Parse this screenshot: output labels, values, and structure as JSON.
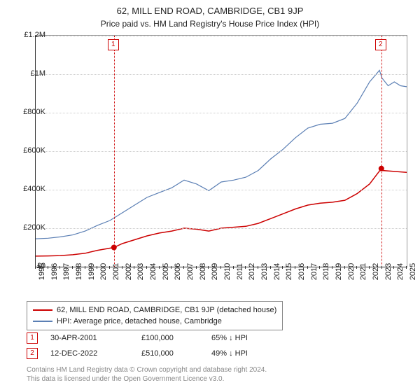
{
  "title": "62, MILL END ROAD, CAMBRIDGE, CB1 9JP",
  "subtitle": "Price paid vs. HM Land Registry's House Price Index (HPI)",
  "chart": {
    "type": "line",
    "background_color": "#ffffff",
    "grid_color": "#cccccc",
    "axis_color": "#333333",
    "ylabel_prefix": "£",
    "ylim": [
      0,
      1200000
    ],
    "ytick_step": 200000,
    "ytick_labels": [
      "£0",
      "£200K",
      "£400K",
      "£600K",
      "£800K",
      "£1M",
      "£1.2M"
    ],
    "xyears": [
      1995,
      1996,
      1997,
      1998,
      1999,
      2000,
      2001,
      2002,
      2003,
      2004,
      2005,
      2006,
      2007,
      2008,
      2009,
      2010,
      2011,
      2012,
      2013,
      2014,
      2015,
      2016,
      2017,
      2018,
      2019,
      2020,
      2021,
      2022,
      2023,
      2024,
      2025
    ],
    "title_fontsize": 13,
    "subtitle_fontsize": 12,
    "tick_fontsize": 11,
    "series": [
      {
        "name": "property",
        "label": "62, MILL END ROAD, CAMBRIDGE, CB1 9JP (detached house)",
        "color": "#cc0000",
        "line_width": 1.5,
        "data": [
          [
            1995,
            55000
          ],
          [
            1996,
            56000
          ],
          [
            1997,
            58000
          ],
          [
            1998,
            62000
          ],
          [
            1999,
            70000
          ],
          [
            2000,
            85000
          ],
          [
            2001.33,
            100000
          ],
          [
            2002,
            120000
          ],
          [
            2003,
            140000
          ],
          [
            2004,
            160000
          ],
          [
            2005,
            175000
          ],
          [
            2006,
            185000
          ],
          [
            2007,
            200000
          ],
          [
            2008,
            195000
          ],
          [
            2009,
            185000
          ],
          [
            2010,
            200000
          ],
          [
            2011,
            205000
          ],
          [
            2012,
            210000
          ],
          [
            2013,
            225000
          ],
          [
            2014,
            250000
          ],
          [
            2015,
            275000
          ],
          [
            2016,
            300000
          ],
          [
            2017,
            320000
          ],
          [
            2018,
            330000
          ],
          [
            2019,
            335000
          ],
          [
            2020,
            345000
          ],
          [
            2021,
            380000
          ],
          [
            2022,
            430000
          ],
          [
            2022.95,
            510000
          ],
          [
            2023,
            500000
          ],
          [
            2024,
            495000
          ],
          [
            2025,
            490000
          ]
        ]
      },
      {
        "name": "hpi",
        "label": "HPI: Average price, detached house, Cambridge",
        "color": "#5b7fb4",
        "line_width": 1.2,
        "data": [
          [
            1995,
            145000
          ],
          [
            1996,
            148000
          ],
          [
            1997,
            155000
          ],
          [
            1998,
            165000
          ],
          [
            1999,
            185000
          ],
          [
            2000,
            215000
          ],
          [
            2001,
            240000
          ],
          [
            2002,
            280000
          ],
          [
            2003,
            320000
          ],
          [
            2004,
            360000
          ],
          [
            2005,
            385000
          ],
          [
            2006,
            410000
          ],
          [
            2007,
            450000
          ],
          [
            2008,
            430000
          ],
          [
            2009,
            395000
          ],
          [
            2010,
            440000
          ],
          [
            2011,
            450000
          ],
          [
            2012,
            465000
          ],
          [
            2013,
            500000
          ],
          [
            2014,
            560000
          ],
          [
            2015,
            610000
          ],
          [
            2016,
            670000
          ],
          [
            2017,
            720000
          ],
          [
            2018,
            740000
          ],
          [
            2019,
            745000
          ],
          [
            2020,
            770000
          ],
          [
            2021,
            850000
          ],
          [
            2022,
            960000
          ],
          [
            2022.8,
            1020000
          ],
          [
            2023,
            980000
          ],
          [
            2023.5,
            940000
          ],
          [
            2024,
            960000
          ],
          [
            2024.5,
            940000
          ],
          [
            2025,
            935000
          ]
        ]
      }
    ],
    "sale_markers": [
      {
        "id": "1",
        "year": 2001.33,
        "value": 100000,
        "box_color": "#cc0000"
      },
      {
        "id": "2",
        "year": 2022.95,
        "value": 510000,
        "box_color": "#cc0000"
      }
    ],
    "vline_color": "#cc0000"
  },
  "legend": {
    "items": [
      {
        "color": "#cc0000",
        "label": "62, MILL END ROAD, CAMBRIDGE, CB1 9JP (detached house)"
      },
      {
        "color": "#5b7fb4",
        "label": "HPI: Average price, detached house, Cambridge"
      }
    ]
  },
  "sales": [
    {
      "id": "1",
      "date": "30-APR-2001",
      "price": "£100,000",
      "diff": "65% ↓ HPI"
    },
    {
      "id": "2",
      "date": "12-DEC-2022",
      "price": "£510,000",
      "diff": "49% ↓ HPI"
    }
  ],
  "footer": {
    "line1": "Contains HM Land Registry data © Crown copyright and database right 2024.",
    "line2": "This data is licensed under the Open Government Licence v3.0."
  }
}
